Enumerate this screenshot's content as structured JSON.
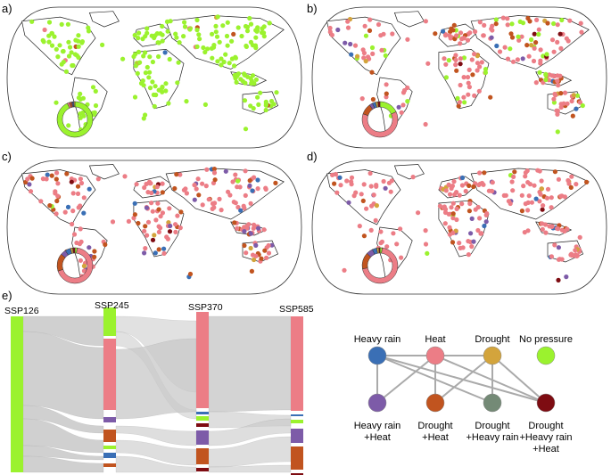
{
  "panels": [
    {
      "letter": "a)",
      "fractions": [
        0.93,
        0.02,
        0.02,
        0.01,
        0.01,
        0.01,
        0.0
      ]
    },
    {
      "letter": "b)",
      "fractions": [
        0.18,
        0.62,
        0.1,
        0.03,
        0.03,
        0.02,
        0.02
      ]
    },
    {
      "letter": "c)",
      "fractions": [
        0.02,
        0.68,
        0.16,
        0.05,
        0.05,
        0.02,
        0.02
      ]
    },
    {
      "letter": "d)",
      "fractions": [
        0.02,
        0.7,
        0.15,
        0.06,
        0.04,
        0.02,
        0.01
      ]
    }
  ],
  "sankey": {
    "letter": "e)",
    "columns": [
      "SSP126",
      "SSP245",
      "SSP370",
      "SSP585"
    ]
  },
  "legend": {
    "top": [
      {
        "label": "Heavy rain",
        "color": "#3a6fb5"
      },
      {
        "label": "Heat",
        "color": "#ec7d86"
      },
      {
        "label": "Drought",
        "color": "#d3a43c"
      },
      {
        "label": "No pressure",
        "color": "#9bf22e"
      }
    ],
    "bottom": [
      {
        "label_lines": [
          "Heavy rain",
          "+Heat"
        ],
        "color": "#7d5ba8"
      },
      {
        "label_lines": [
          "Drought",
          "+Heat"
        ],
        "color": "#c1541f"
      },
      {
        "label_lines": [
          "Drought",
          "+Heavy rain"
        ],
        "color": "#748a76"
      },
      {
        "label_lines": [
          "Drought",
          "+Heavy rain",
          "+Heat"
        ],
        "color": "#7e0c12"
      }
    ]
  },
  "colors": {
    "no_pressure": "#9bf22e",
    "heat": "#ec7d86",
    "drought_heat": "#c1541f",
    "heavy_rain_heat": "#7d5ba8",
    "heavy_rain": "#3a6fb5",
    "drought": "#d3a43c",
    "all_three": "#7e0c12",
    "drought_heavy_rain": "#748a76",
    "flow": "#c8c8c8"
  }
}
